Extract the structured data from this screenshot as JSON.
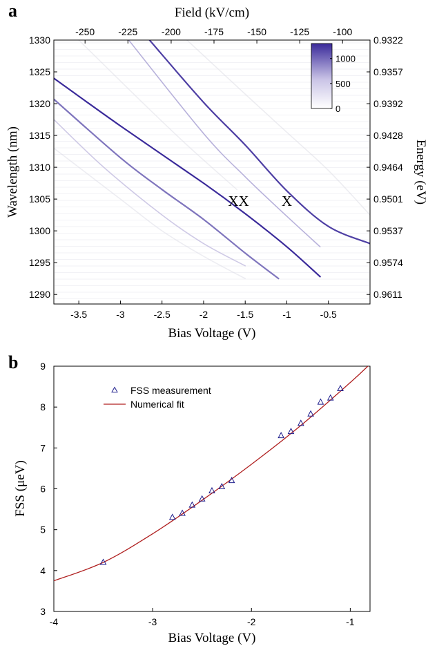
{
  "chart_data": [
    {
      "panel": "a",
      "type": "heatmap",
      "title": "",
      "xlabel": "Bias Voltage (V)",
      "ylabel": "Wavelength (nm)",
      "top_axis_label": "Field (kV/cm)",
      "right_axis_label": "Energy (eV)",
      "xlim": [
        -3.8,
        0.0
      ],
      "ylim": [
        1288.5,
        1330
      ],
      "x_ticks": [
        -3.5,
        -3,
        -2.5,
        -2,
        -1.5,
        -1,
        -0.5
      ],
      "x_tick_labels": [
        "-3.5",
        "-3",
        "-2.5",
        "-2",
        "-1.5",
        "-1",
        "-0.5"
      ],
      "y_ticks": [
        1290,
        1295,
        1300,
        1305,
        1310,
        1315,
        1320,
        1325,
        1330
      ],
      "y_tick_labels": [
        "1290",
        "1295",
        "1300",
        "1305",
        "1310",
        "1315",
        "1320",
        "1325",
        "1330"
      ],
      "top_ticks": [
        {
          "label": "-250",
          "bias": -3.425
        },
        {
          "label": "-225",
          "bias": -2.91
        },
        {
          "label": "-200",
          "bias": -2.39
        },
        {
          "label": "-175",
          "bias": -1.875
        },
        {
          "label": "-150",
          "bias": -1.36
        },
        {
          "label": "-125",
          "bias": -0.845
        },
        {
          "label": "-100",
          "bias": -0.33
        }
      ],
      "right_ticks": [
        {
          "label": "0.9322",
          "wavelength": 1330
        },
        {
          "label": "0.9357",
          "wavelength": 1325
        },
        {
          "label": "0.9392",
          "wavelength": 1320
        },
        {
          "label": "0.9428",
          "wavelength": 1315
        },
        {
          "label": "0.9464",
          "wavelength": 1310
        },
        {
          "label": "0.9501",
          "wavelength": 1305
        },
        {
          "label": "0.9537",
          "wavelength": 1300
        },
        {
          "label": "0.9574",
          "wavelength": 1295
        },
        {
          "label": "0.9611",
          "wavelength": 1290
        }
      ],
      "colorbar": {
        "range": [
          0,
          1300
        ],
        "ticks": [
          1000,
          500,
          0
        ],
        "tick_labels": [
          "1000",
          "500",
          "0"
        ],
        "low_color": "#ffffff",
        "high_color": "#3a2a9a"
      },
      "annotations": [
        {
          "text": "XX",
          "bias": -1.58,
          "wavelength": 1304.7
        },
        {
          "text": "X",
          "bias": -1.0,
          "wavelength": 1304.7
        }
      ],
      "lines": [
        {
          "points": [
            [
              -3.8,
              1324
            ],
            [
              -3.0,
              1316.5
            ],
            [
              -2.0,
              1307.5
            ],
            [
              -1.5,
              1302.7
            ],
            [
              -1.0,
              1297.5
            ],
            [
              -0.6,
              1292.8
            ]
          ],
          "intensity": 1.0
        },
        {
          "points": [
            [
              -2.65,
              1330
            ],
            [
              -2.0,
              1320.2
            ],
            [
              -1.5,
              1313.5
            ],
            [
              -1.0,
              1306.3
            ],
            [
              -0.5,
              1300.7
            ],
            [
              0.0,
              1298.0
            ]
          ],
          "intensity": 0.9
        },
        {
          "points": [
            [
              -3.8,
              1320.7
            ],
            [
              -3.0,
              1311.5
            ],
            [
              -2.5,
              1306.5
            ],
            [
              -2.0,
              1301.8
            ],
            [
              -1.5,
              1296.5
            ],
            [
              -1.1,
              1292.5
            ]
          ],
          "intensity": 0.65
        },
        {
          "points": [
            [
              -2.9,
              1330
            ],
            [
              -2.0,
              1315.3
            ],
            [
              -1.5,
              1308.5
            ],
            [
              -1.0,
              1302.3
            ],
            [
              -0.6,
              1297.5
            ]
          ],
          "intensity": 0.45
        },
        {
          "points": [
            [
              -3.8,
              1317.5
            ],
            [
              -3.2,
              1310
            ],
            [
              -2.5,
              1302.5
            ],
            [
              -2.0,
              1298
            ],
            [
              -1.5,
              1294.5
            ]
          ],
          "intensity": 0.35
        },
        {
          "points": [
            [
              -2.2,
              1330
            ],
            [
              -1.5,
              1321.5
            ],
            [
              -1.0,
              1315.5
            ],
            [
              -0.5,
              1309.5
            ],
            [
              0.0,
              1302.5
            ]
          ],
          "intensity": 0.12
        },
        {
          "points": [
            [
              -3.8,
              1313
            ],
            [
              -3.0,
              1305
            ],
            [
              -2.5,
              1300
            ],
            [
              -2.0,
              1296
            ],
            [
              -1.5,
              1292.5
            ]
          ],
          "intensity": 0.1
        },
        {
          "points": [
            [
              -3.5,
              1330
            ],
            [
              -2.8,
              1321
            ],
            [
              -2.2,
              1313.5
            ],
            [
              -1.6,
              1306.5
            ]
          ],
          "intensity": 0.08
        }
      ]
    },
    {
      "panel": "b",
      "type": "scatter",
      "title": "",
      "xlabel": "Bias Voltage (V)",
      "ylabel": "FSS (μeV)",
      "xlim": [
        -4,
        -0.8
      ],
      "ylim": [
        3,
        9
      ],
      "x_ticks": [
        -4,
        -3,
        -2,
        -1
      ],
      "x_tick_labels": [
        "-4",
        "-3",
        "-2",
        "-1"
      ],
      "y_ticks": [
        3,
        4,
        5,
        6,
        7,
        8,
        9
      ],
      "y_tick_labels": [
        "3",
        "4",
        "5",
        "6",
        "7",
        "8",
        "9"
      ],
      "legend": {
        "position": "top-left",
        "entries": [
          "FSS measurement",
          "Numerical fit"
        ]
      },
      "series": [
        {
          "name": "FSS measurement",
          "type": "scatter",
          "color": "#1e1e8c",
          "x": [
            -3.5,
            -2.8,
            -2.7,
            -2.6,
            -2.5,
            -2.4,
            -2.3,
            -2.2,
            -1.7,
            -1.6,
            -1.5,
            -1.4,
            -1.3,
            -1.2,
            -1.1
          ],
          "y": [
            4.2,
            5.3,
            5.4,
            5.6,
            5.75,
            5.95,
            6.05,
            6.2,
            7.3,
            7.4,
            7.6,
            7.83,
            8.12,
            8.22,
            8.45
          ]
        },
        {
          "name": "Numerical fit",
          "type": "line",
          "color": "#b02020",
          "x": [
            -4.0,
            -3.5,
            -3.0,
            -2.5,
            -2.0,
            -1.5,
            -1.0,
            -0.8
          ],
          "y": [
            3.75,
            4.2,
            4.9,
            5.72,
            6.6,
            7.55,
            8.6,
            9.05
          ]
        }
      ]
    }
  ],
  "labels": {
    "panel_a": "a",
    "panel_b": "b"
  }
}
